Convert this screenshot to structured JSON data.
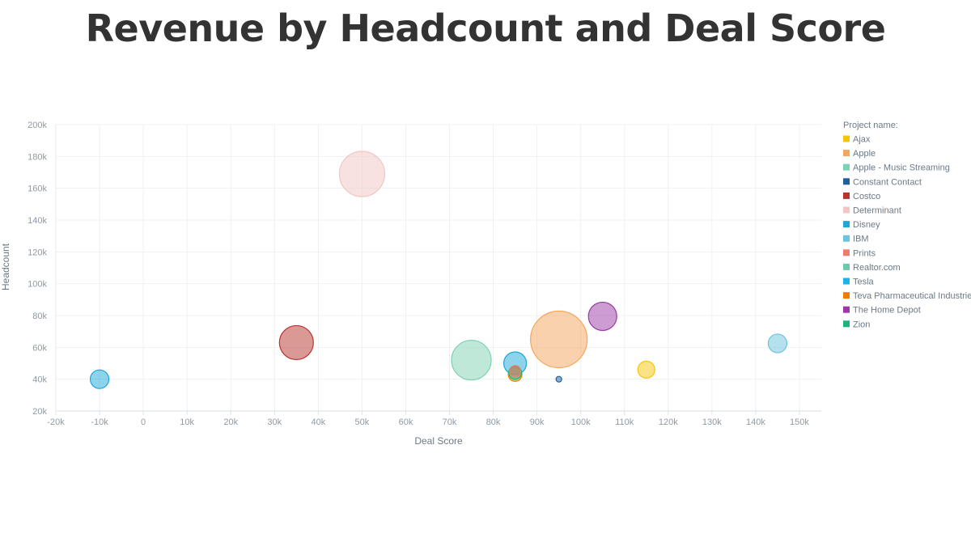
{
  "chart_data": {
    "type": "bubble",
    "title": "Revenue by Headcount and Deal Score",
    "xlabel": "Deal Score",
    "ylabel": "Headcount",
    "xlim": [
      -20000,
      155000
    ],
    "ylim": [
      20000,
      200000
    ],
    "x_ticks": [
      "-20k",
      "-10k",
      "0",
      "10k",
      "20k",
      "30k",
      "40k",
      "50k",
      "60k",
      "70k",
      "80k",
      "90k",
      "100k",
      "110k",
      "120k",
      "130k",
      "140k",
      "150k"
    ],
    "y_ticks": [
      "20k",
      "40k",
      "60k",
      "80k",
      "100k",
      "120k",
      "140k",
      "160k",
      "180k",
      "200k"
    ],
    "grid": true,
    "legend_title": "Project name:",
    "legend_position": "right",
    "series": [
      {
        "name": "Ajax",
        "color": "#f5c50b",
        "points": [
          {
            "x": 115000,
            "y": 46000,
            "size": 21
          }
        ]
      },
      {
        "name": "Apple",
        "color": "#f4a65b",
        "points": [
          {
            "x": 95000,
            "y": 65000,
            "size": 70
          }
        ]
      },
      {
        "name": "Apple - Music Streaming",
        "color": "#7fd1b3",
        "points": [
          {
            "x": 75000,
            "y": 52000,
            "size": 49
          }
        ]
      },
      {
        "name": "Constant Contact",
        "color": "#1e5f9e",
        "points": [
          {
            "x": 95000,
            "y": 40000,
            "size": 7
          }
        ]
      },
      {
        "name": "Costco",
        "color": "#b8332d",
        "points": [
          {
            "x": 35000,
            "y": 63000,
            "size": 42
          }
        ]
      },
      {
        "name": "Determinant",
        "color": "#f2c6c4",
        "points": [
          {
            "x": 50000,
            "y": 169000,
            "size": 56
          }
        ]
      },
      {
        "name": "Disney",
        "color": "#1ba8d8",
        "points": [
          {
            "x": 85000,
            "y": 50000,
            "size": 28
          },
          {
            "x": -10000,
            "y": 40000,
            "size": 23
          }
        ]
      },
      {
        "name": "IBM",
        "color": "#6cc3dd",
        "points": [
          {
            "x": 145000,
            "y": 62500,
            "size": 23
          }
        ]
      },
      {
        "name": "Prints",
        "color": "#ef7b6f",
        "points": [
          {
            "x": 85000,
            "y": 45000,
            "size": 14
          }
        ]
      },
      {
        "name": "Realtor.com",
        "color": "#6dc9ab",
        "points": []
      },
      {
        "name": "Tesla",
        "color": "#1fb2e8",
        "points": []
      },
      {
        "name": "Teva Pharmaceutical Industries",
        "color": "#f07d00",
        "points": [
          {
            "x": 85000,
            "y": 43000,
            "size": 17
          }
        ]
      },
      {
        "name": "The Home Depot",
        "color": "#9b3aa6",
        "points": [
          {
            "x": 105000,
            "y": 79500,
            "size": 35
          }
        ]
      },
      {
        "name": "Zion",
        "color": "#1bb382",
        "points": [
          {
            "x": 85000,
            "y": 44000,
            "size": 16
          }
        ]
      }
    ]
  }
}
